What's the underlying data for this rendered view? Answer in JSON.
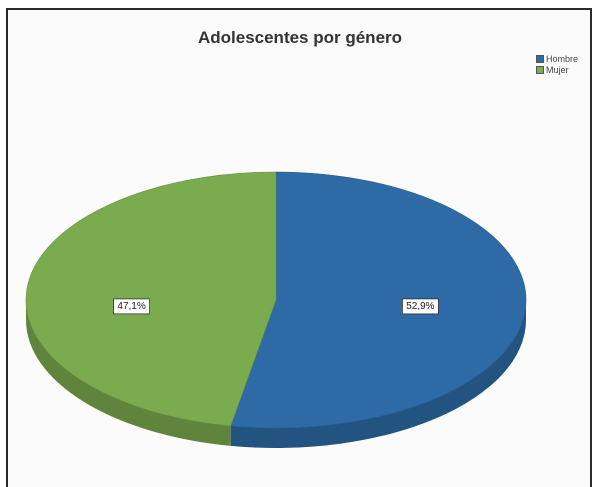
{
  "chart_data": {
    "type": "pie",
    "title": "Adolescentes por género",
    "series": [
      {
        "name": "Hombre",
        "value": 52.9,
        "label": "52,9%",
        "color": "#2d6aa6"
      },
      {
        "name": "Mujer",
        "value": 47.1,
        "label": "47,1%",
        "color": "#7aab4e"
      }
    ],
    "legend": "top-right",
    "style": "3d-tilted"
  }
}
